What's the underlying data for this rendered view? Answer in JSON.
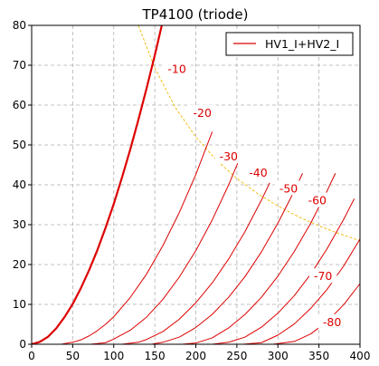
{
  "chart_data": {
    "type": "line",
    "title": "TP4100 (triode)",
    "xlabel": "",
    "ylabel": "",
    "xlim": [
      0,
      400
    ],
    "ylim": [
      0,
      80
    ],
    "xticks": [
      0,
      50,
      100,
      150,
      200,
      250,
      300,
      350,
      400
    ],
    "yticks": [
      0,
      10,
      20,
      30,
      40,
      50,
      60,
      70,
      80
    ],
    "grid": true,
    "legend": {
      "position": "top-right",
      "entries": [
        "HV1_I+HV2_I"
      ]
    },
    "colors": {
      "curve": "#dd0000",
      "dissipation": "#f0b800",
      "grid": "#b0b0b0"
    },
    "series": [
      {
        "grid_voltage": "0",
        "x": [
          0,
          10,
          20,
          30,
          40,
          50,
          60,
          70,
          80,
          90,
          100,
          110,
          120,
          130,
          140,
          150,
          160
        ],
        "y": [
          0,
          0.6,
          1.9,
          4.0,
          6.8,
          10.1,
          14.1,
          18.6,
          23.6,
          29.2,
          35.2,
          41.8,
          48.8,
          56.3,
          64.2,
          72.5,
          81.3
        ]
      },
      {
        "grid_voltage": "-10",
        "x": [
          36,
          50,
          60,
          70,
          80,
          90,
          100,
          120,
          140,
          160,
          180,
          200,
          220
        ],
        "y": [
          0,
          0.5,
          1.1,
          2.1,
          3.4,
          5.0,
          6.9,
          11.7,
          17.6,
          24.8,
          33.1,
          42.6,
          53.3
        ]
      },
      {
        "grid_voltage": "-20",
        "x": [
          72,
          90,
          100,
          120,
          140,
          160,
          180,
          200,
          220,
          240,
          255
        ],
        "y": [
          0,
          0.4,
          1.3,
          3.5,
          6.8,
          11.3,
          16.9,
          23.5,
          31.2,
          40.0,
          47.4
        ]
      },
      {
        "grid_voltage": "-30",
        "x": [
          110,
          130,
          140,
          160,
          180,
          200,
          220,
          240,
          260,
          280,
          290
        ],
        "y": [
          0,
          0.5,
          1.2,
          3.2,
          6.3,
          10.4,
          15.4,
          21.4,
          28.3,
          36.2,
          40.5
        ]
      },
      {
        "grid_voltage": "-40",
        "x": [
          146,
          160,
          180,
          200,
          220,
          240,
          260,
          280,
          300,
          320,
          330
        ],
        "y": [
          0,
          0.5,
          1.8,
          4.2,
          7.5,
          11.8,
          17.0,
          23.2,
          30.4,
          38.5,
          42.9
        ]
      },
      {
        "grid_voltage": "-50",
        "x": [
          183,
          200,
          220,
          240,
          260,
          280,
          300,
          320,
          340,
          360,
          370
        ],
        "y": [
          0,
          0.3,
          1.6,
          4.1,
          7.5,
          11.8,
          17.1,
          23.3,
          30.4,
          38.5,
          42.9
        ]
      },
      {
        "grid_voltage": "-60",
        "x": [
          220,
          240,
          260,
          280,
          300,
          320,
          340,
          360,
          380,
          393
        ],
        "y": [
          0,
          0.5,
          1.8,
          4.3,
          7.8,
          12.2,
          17.6,
          24.0,
          31.3,
          36.5
        ]
      },
      {
        "grid_voltage": "-70",
        "x": [
          257,
          280,
          300,
          320,
          340,
          360,
          380,
          400
        ],
        "y": [
          0,
          0.4,
          2.3,
          5.1,
          9.0,
          13.8,
          19.6,
          26.4
        ]
      },
      {
        "grid_voltage": "-80",
        "x": [
          294,
          320,
          340,
          360,
          380,
          400
        ],
        "y": [
          0,
          0.7,
          2.6,
          5.7,
          9.9,
          15.2
        ]
      }
    ],
    "dissipation_curve": {
      "x": [
        130,
        150,
        175,
        200,
        225,
        250,
        275,
        300,
        325,
        350,
        375,
        400
      ],
      "y": [
        80,
        69.3,
        59.4,
        52.0,
        46.2,
        41.6,
        37.8,
        34.7,
        32.0,
        29.7,
        27.7,
        26.0
      ]
    },
    "annotations": [
      {
        "text": "-10",
        "x": 177,
        "y": 69
      },
      {
        "text": "-20",
        "x": 208,
        "y": 58
      },
      {
        "text": "-30",
        "x": 240,
        "y": 47
      },
      {
        "text": "-40",
        "x": 276,
        "y": 43
      },
      {
        "text": "-50",
        "x": 313,
        "y": 39
      },
      {
        "text": "-60",
        "x": 348,
        "y": 36
      },
      {
        "text": "-70",
        "x": 355,
        "y": 17
      },
      {
        "text": "-80",
        "x": 366,
        "y": 5.5
      }
    ]
  }
}
